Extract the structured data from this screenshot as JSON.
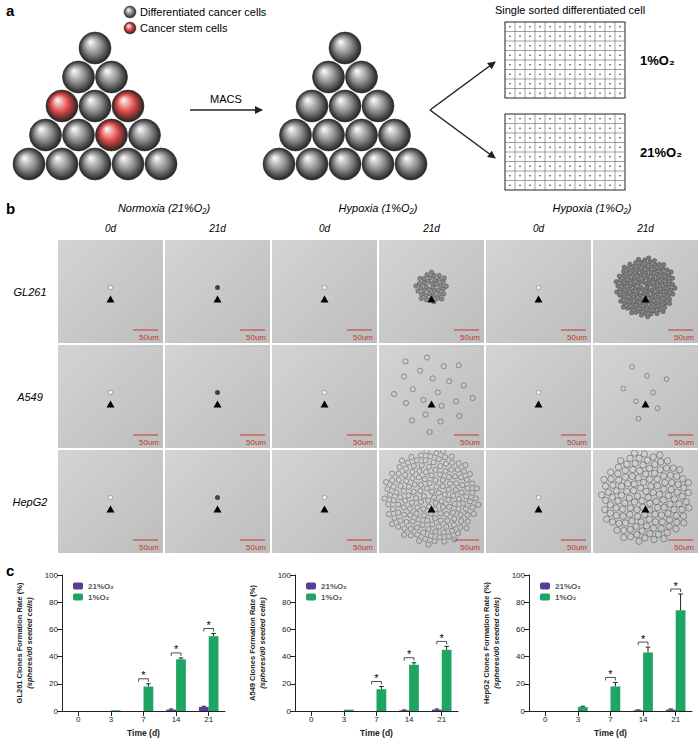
{
  "figure": {
    "a": {
      "label": "a",
      "legend": [
        {
          "text": "Differentiated cancer cells",
          "color": "#8c8c8c"
        },
        {
          "text": "Cancer stem cells",
          "color": "#e04848"
        }
      ],
      "arrow_label": "MACS",
      "plate_title": "Single sorted differentiated cell",
      "plates": [
        "1%O₂",
        "21%O₂"
      ]
    },
    "b": {
      "label": "b",
      "groups": [
        {
          "title": "Normoxia (21%O₂)",
          "columns": [
            "0d",
            "21d"
          ]
        },
        {
          "title": "Hypoxia (1%O₂)",
          "columns": [
            "0d",
            "21d"
          ]
        },
        {
          "title": "Hypoxia (1%O₂)",
          "columns": [
            "0d",
            "21d"
          ]
        }
      ],
      "rows": [
        "GL261",
        "A549",
        "HepG2"
      ],
      "scale_bar": "50um"
    },
    "c": {
      "label": "c"
    }
  },
  "chart_data": [
    {
      "type": "bar",
      "categories": [
        "0",
        "3",
        "7",
        "14",
        "21"
      ],
      "x_label": "Time (d)",
      "y_label": "GL261 Clones Formation Rate (%)",
      "y_sublabel": "(spheres/d0 seeded cells)",
      "ylim": [
        0,
        100
      ],
      "yticks": [
        0,
        20,
        40,
        60,
        80,
        100
      ],
      "grid": false,
      "legend": "upper left",
      "series": [
        {
          "name": "21%O₂",
          "color": "#5b3d99",
          "values": [
            0,
            0,
            0,
            1,
            3
          ],
          "errors": [
            0,
            0,
            0,
            0.5,
            0.5
          ]
        },
        {
          "name": "1%O₂",
          "color": "#1fa463",
          "values": [
            0,
            0.5,
            18,
            38,
            55
          ],
          "errors": [
            0,
            0,
            2,
            1,
            2
          ]
        }
      ],
      "annotations": [
        {
          "category": "7",
          "text": "*"
        },
        {
          "category": "14",
          "text": "*"
        },
        {
          "category": "21",
          "text": "*"
        }
      ]
    },
    {
      "type": "bar",
      "categories": [
        "0",
        "3",
        "7",
        "14",
        "21"
      ],
      "x_label": "Time (d)",
      "y_label": "A549 Clones Formation Rate (%)",
      "y_sublabel": "(spheres/d0 seeded cells)",
      "ylim": [
        0,
        100
      ],
      "yticks": [
        0,
        20,
        40,
        60,
        80,
        100
      ],
      "grid": false,
      "legend": "upper left",
      "series": [
        {
          "name": "21%O₂",
          "color": "#5b3d99",
          "values": [
            0,
            0,
            0,
            0.5,
            1
          ],
          "errors": [
            0,
            0,
            0,
            0.3,
            0.5
          ]
        },
        {
          "name": "1%O₂",
          "color": "#1fa463",
          "values": [
            0,
            1,
            16,
            34,
            45
          ],
          "errors": [
            0,
            0,
            2,
            1.5,
            2.5
          ]
        }
      ],
      "annotations": [
        {
          "category": "7",
          "text": "*"
        },
        {
          "category": "14",
          "text": "*"
        },
        {
          "category": "21",
          "text": "*"
        }
      ]
    },
    {
      "type": "bar",
      "categories": [
        "0",
        "3",
        "7",
        "14",
        "21"
      ],
      "x_label": "Time (d)",
      "y_label": "HepG2 Clones Formation Rate (%)",
      "y_sublabel": "(spheres/d0 seeded cells)",
      "ylim": [
        0,
        100
      ],
      "yticks": [
        0,
        20,
        40,
        60,
        80,
        100
      ],
      "grid": false,
      "legend": "upper left",
      "series": [
        {
          "name": "21%O₂",
          "color": "#5b3d99",
          "values": [
            0,
            0,
            0,
            0.5,
            1
          ],
          "errors": [
            0,
            0,
            0,
            0.3,
            0.5
          ]
        },
        {
          "name": "1%O₂",
          "color": "#1fa463",
          "values": [
            0,
            3,
            18,
            43,
            74
          ],
          "errors": [
            0,
            0.5,
            3,
            4,
            12
          ]
        }
      ],
      "annotations": [
        {
          "category": "7",
          "text": "*"
        },
        {
          "category": "14",
          "text": "*"
        },
        {
          "category": "21",
          "text": "*"
        }
      ]
    }
  ]
}
